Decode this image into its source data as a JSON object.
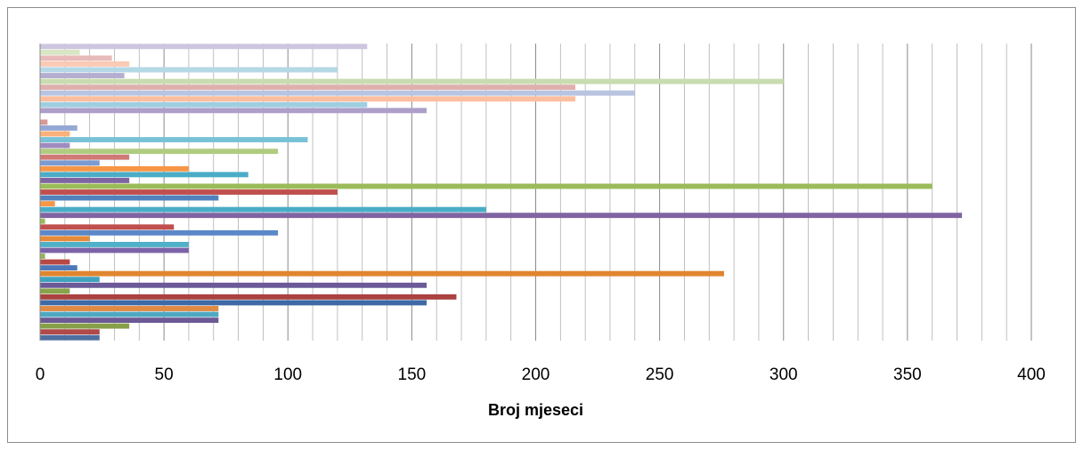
{
  "chart_data": {
    "type": "bar",
    "orientation": "horizontal",
    "title": "",
    "xlabel": "Broj mjeseci",
    "ylabel": "",
    "xlim": [
      0,
      400
    ],
    "major_ticks": [
      0,
      50,
      100,
      150,
      200,
      250,
      300,
      350,
      400
    ],
    "minor_tick_step": 10,
    "grid": "vertical major and minor gridlines",
    "legend": "none",
    "values": [
      24,
      24,
      36,
      72,
      72,
      72,
      156,
      168,
      12,
      156,
      24,
      276,
      15,
      12,
      2,
      60,
      60,
      20,
      96,
      54,
      2,
      372,
      180,
      6,
      72,
      120,
      360,
      36,
      84,
      60,
      24,
      36,
      96,
      12,
      108,
      12,
      15,
      3,
      0,
      156,
      132,
      216,
      240,
      216,
      300,
      34,
      120,
      36,
      29,
      16,
      132
    ],
    "colors": [
      "#4f6fa0",
      "#b04a48",
      "#86a048",
      "#6c5a96",
      "#4ea8c2",
      "#e08a44",
      "#3d6aa4",
      "#aa4240",
      "#88a34a",
      "#6b5998",
      "#3fa2bf",
      "#e0852f",
      "#4c78b8",
      "#b84844",
      "#95b458",
      "#7b63a8",
      "#4fb0c8",
      "#e48a3a",
      "#5a88c8",
      "#c0504d",
      "#9bbb59",
      "#8064a2",
      "#4bacc6",
      "#f79646",
      "#4f81bd",
      "#c0504d",
      "#9bbb59",
      "#8064a2",
      "#4bacc6",
      "#f79646",
      "#7d9bd0",
      "#d07a78",
      "#b0cc80",
      "#9f8bbf",
      "#79c1d6",
      "#f9b07a",
      "#94a8d6",
      "#d89896",
      "#c0d89e",
      "#ad9fc9",
      "#9ecfe0",
      "#fbbfa0",
      "#b8c4e0",
      "#e0b0ae",
      "#c8dcb0",
      "#b6aed0",
      "#b4d8e6",
      "#fbcab4",
      "#e8baba",
      "#d8e6c4",
      "#cdc6de"
    ]
  }
}
